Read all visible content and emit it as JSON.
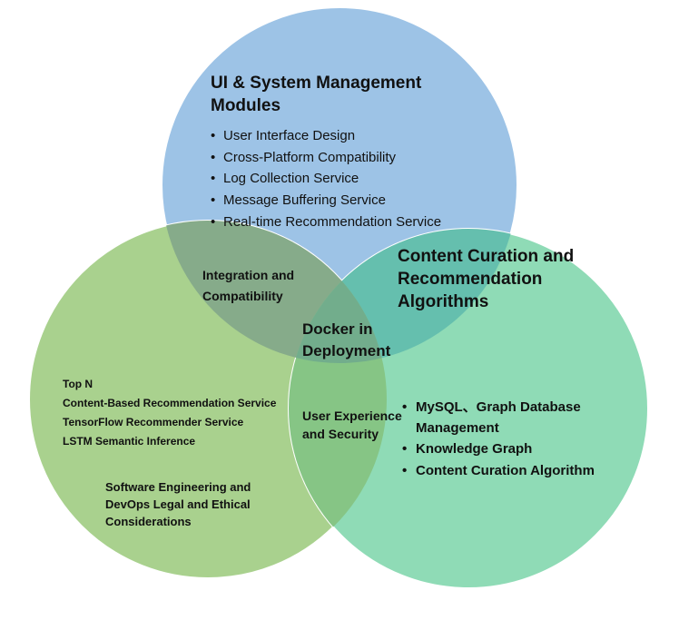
{
  "colors": {
    "top_circle": "#9dc3e6",
    "left_circle": "#a9d18e",
    "right_circle": "#8fdbb6",
    "circle_stroke": "#ffffff"
  },
  "top_circle": {
    "title_lines": [
      "UI & System Management",
      "Modules"
    ],
    "items": [
      "User Interface Design",
      "Cross-Platform Compatibility",
      "Log Collection Service",
      "Message Buffering Service",
      "Real-time Recommendation Service"
    ]
  },
  "right_circle": {
    "title_lines": [
      "Content Curation and",
      "Recommendation",
      "Algorithms"
    ],
    "items": [
      [
        "MySQL、Graph Database",
        "Management"
      ],
      [
        "Knowledge Graph"
      ],
      [
        "Content Curation Algorithm"
      ]
    ]
  },
  "left_circle": {
    "items": [
      "Top N",
      "Content-Based Recommendation Service",
      "TensorFlow Recommender Service",
      "LSTM Semantic Inference"
    ],
    "footer_lines": [
      "Software Engineering and",
      "DevOps Legal and Ethical",
      "Considerations"
    ]
  },
  "overlaps": {
    "top_left": [
      "Integration and",
      "Compatibility"
    ],
    "left_right": [
      "User Experience",
      "and Security"
    ],
    "center": [
      "Docker in",
      "Deployment"
    ]
  },
  "bullet_char": "•"
}
